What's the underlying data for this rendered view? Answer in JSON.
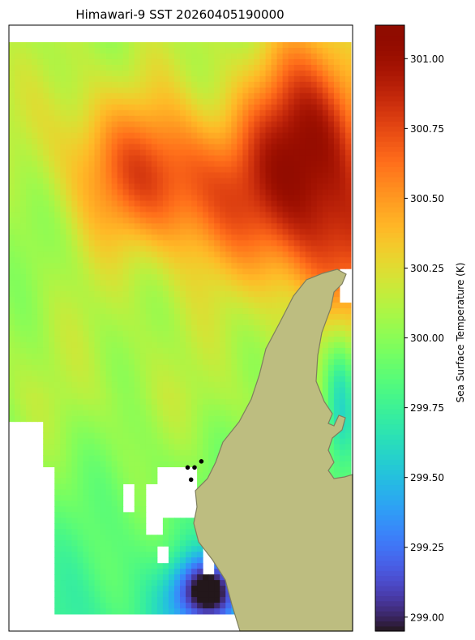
{
  "chart_data": {
    "type": "heatmap",
    "title": "Himawari-9 SST 20260405190000",
    "colorbar": {
      "label": "Sea Surface Temperature (K)",
      "vmin": 298.95,
      "vmax": 301.12,
      "ticks": [
        299.0,
        299.25,
        299.5,
        299.75,
        300.0,
        300.25,
        300.5,
        300.75,
        301.0
      ],
      "tick_labels": [
        "299.00",
        "299.25",
        "299.50",
        "299.75",
        "300.00",
        "300.25",
        "300.50",
        "300.75",
        "301.00"
      ],
      "colormap": "turbo"
    },
    "map": {
      "grid": {
        "cols": 60,
        "rows": 101
      },
      "land_color": "#bdbd80",
      "coastline_color": "#7f7f5e",
      "point_color": "#000000",
      "points": [
        {
          "i": 0.56,
          "j": 0.72
        },
        {
          "i": 0.52,
          "j": 0.73
        },
        {
          "i": 0.54,
          "j": 0.73
        },
        {
          "i": 0.53,
          "j": 0.75
        }
      ]
    }
  }
}
